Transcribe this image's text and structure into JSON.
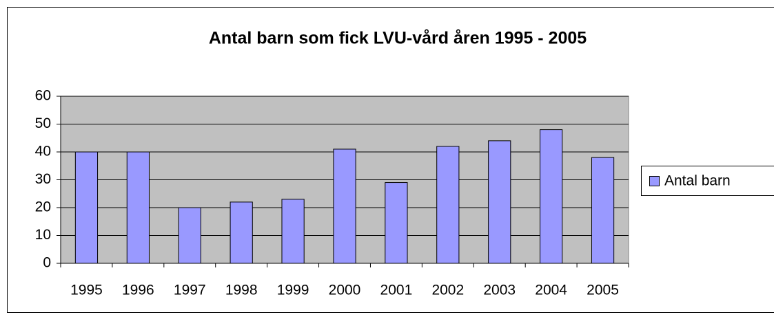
{
  "chart_data": {
    "type": "bar",
    "title": "Antal barn som fick LVU-vård åren 1995 - 2005",
    "categories": [
      "1995",
      "1996",
      "1997",
      "1998",
      "1999",
      "2000",
      "2001",
      "2002",
      "2003",
      "2004",
      "2005"
    ],
    "series": [
      {
        "name": "Antal barn",
        "color": "#9999ff",
        "values": [
          40,
          40,
          20,
          22,
          23,
          41,
          29,
          42,
          44,
          48,
          38
        ]
      }
    ],
    "ylim": [
      0,
      60
    ],
    "yticks": [
      0,
      10,
      20,
      30,
      40,
      50,
      60
    ],
    "grid": true,
    "legend": "right"
  }
}
